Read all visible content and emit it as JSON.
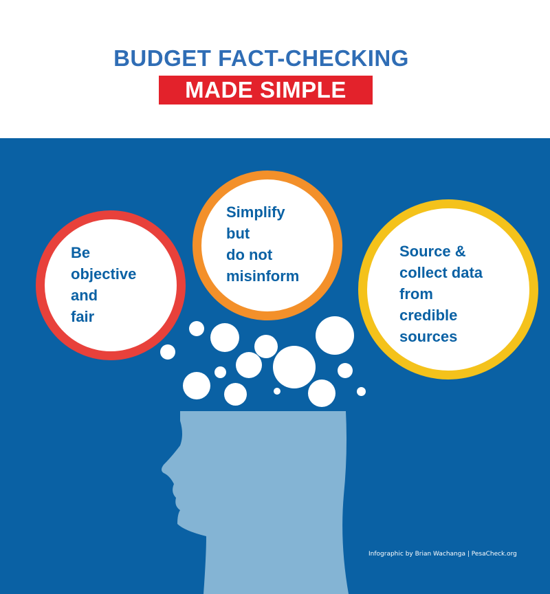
{
  "title": {
    "line1": "BUDGET FACT-CHECKING",
    "line2": "MADE SIMPLE"
  },
  "bubbles": [
    {
      "lines": [
        "Be",
        "objective",
        "and",
        "fair"
      ],
      "ring_color": "#e8413b"
    },
    {
      "lines": [
        "Simplify",
        "but",
        "do not",
        "misinform"
      ],
      "ring_color": "#f3902a"
    },
    {
      "lines": [
        "Source &",
        "collect data",
        "from",
        "credible",
        "sources"
      ],
      "ring_color": "#f4c21b"
    }
  ],
  "colors": {
    "panel": "#0a61a4",
    "title": "#2f6db5",
    "accent": "#e3222b",
    "head": "#84b4d4"
  },
  "credit": "Infographic by Brian Wachanga | PesaCheck.org"
}
